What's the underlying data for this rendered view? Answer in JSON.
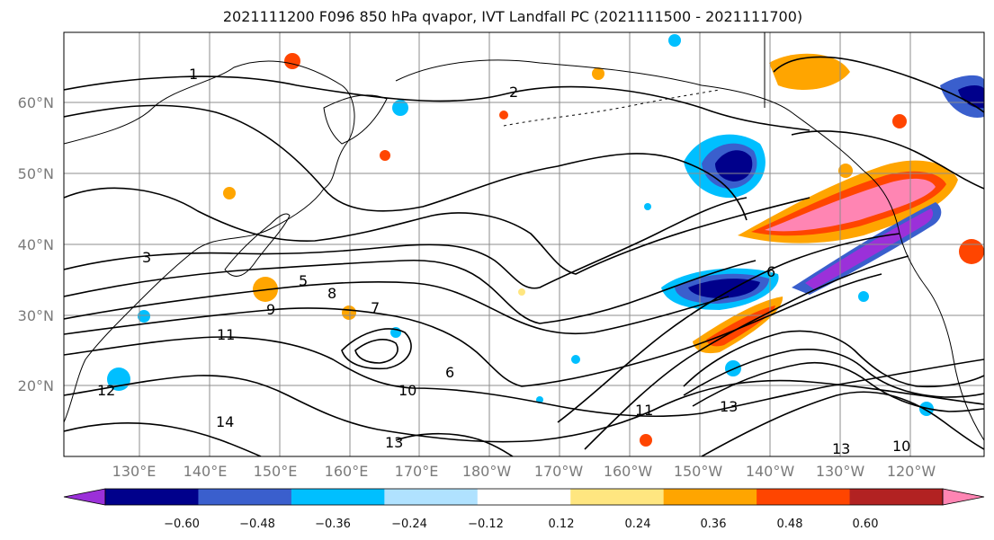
{
  "title": "2021111200 F096 850 hPa qvapor, IVT Landfall PC (2021111500 - 2021111700)",
  "lat_labels": [
    "60°N",
    "50°N",
    "40°N",
    "30°N",
    "20°N"
  ],
  "lon_labels": [
    "130°E",
    "140°E",
    "150°E",
    "160°E",
    "170°E",
    "180°W",
    "170°W",
    "160°W",
    "150°W",
    "140°W",
    "130°W",
    "120°W"
  ],
  "contour_labels": [
    "1",
    "2",
    "3",
    "6",
    "6",
    "8",
    "9",
    "10",
    "11",
    "12",
    "13",
    "13",
    "14",
    "5",
    "7",
    "10",
    "11",
    "13"
  ],
  "colorbar": {
    "ticks": [
      "−0.60",
      "−0.48",
      "−0.36",
      "−0.24",
      "−0.12",
      "0.12",
      "0.24",
      "0.36",
      "0.48",
      "0.60"
    ],
    "colors": [
      "#9b30d9",
      "#00008b",
      "#3a5fcd",
      "#00bfff",
      "#b0e2ff",
      "#ffffff",
      "#ffe680",
      "#ffa500",
      "#ff4500",
      "#b22222",
      "#ff85b3"
    ]
  }
}
